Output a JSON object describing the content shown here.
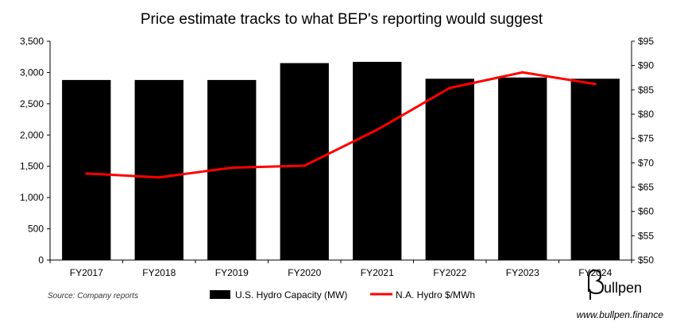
{
  "chart_data": {
    "type": "bar",
    "title": "Price estimate tracks to what BEP's reporting would suggest",
    "categories": [
      "FY2017",
      "FY2018",
      "FY2019",
      "FY2020",
      "FY2021",
      "FY2022",
      "FY2023",
      "FY2024"
    ],
    "series": [
      {
        "name": "U.S. Hydro Capacity (MW)",
        "type": "bar",
        "axis": "left",
        "color": "#000000",
        "values": [
          2880,
          2880,
          2880,
          3150,
          3170,
          2900,
          2920,
          2900
        ]
      },
      {
        "name": "N.A. Hydro $/MWh",
        "type": "line",
        "axis": "right",
        "color": "#ff0000",
        "values": [
          67.8,
          67.0,
          69.0,
          69.4,
          76.8,
          85.4,
          88.6,
          86.2
        ]
      }
    ],
    "y_left": {
      "min": 0,
      "max": 3500,
      "ticks": [
        0,
        500,
        1000,
        1500,
        2000,
        2500,
        3000,
        3500
      ],
      "tick_labels": [
        "0",
        "500",
        "1,000",
        "1,500",
        "2,000",
        "2,500",
        "3,000",
        "3,500"
      ]
    },
    "y_right": {
      "min": 50,
      "max": 95,
      "ticks": [
        50,
        55,
        60,
        65,
        70,
        75,
        80,
        85,
        90,
        95
      ],
      "tick_labels": [
        "$50",
        "$55",
        "$60",
        "$65",
        "$70",
        "$75",
        "$80",
        "$85",
        "$90",
        "$95"
      ]
    },
    "legend_position": "bottom-center",
    "grid": false
  },
  "footer": {
    "source": "Source: Company reports",
    "brand": "ullpen",
    "website": "www.bullpen.finance"
  }
}
